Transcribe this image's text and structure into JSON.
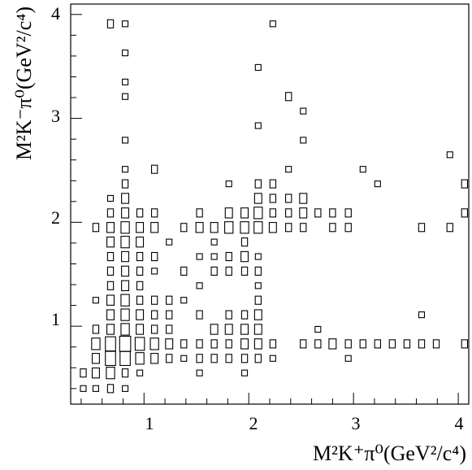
{
  "chart_data": {
    "type": "box",
    "title": "",
    "xlabel": "M²K⁺π⁰(GeV²/c⁴)",
    "ylabel": "M²K⁻π⁰(GeV²/c⁴)",
    "xlim": [
      0.3,
      4.1
    ],
    "ylim": [
      0.25,
      4.1
    ],
    "xticks": [
      "1",
      "2",
      "3",
      "4"
    ],
    "yticks": [
      "1",
      "2",
      "3",
      "4"
    ],
    "grid": false,
    "legend": "none",
    "cell_width": 0.1,
    "cell_height": 0.14,
    "cells": [
      {
        "x": 0.42,
        "y": 0.4,
        "v": 1
      },
      {
        "x": 0.54,
        "y": 0.4,
        "v": 1
      },
      {
        "x": 0.68,
        "y": 0.4,
        "v": 2
      },
      {
        "x": 0.82,
        "y": 0.4,
        "v": 1
      },
      {
        "x": 0.42,
        "y": 0.55,
        "v": 2
      },
      {
        "x": 0.54,
        "y": 0.55,
        "v": 3
      },
      {
        "x": 0.68,
        "y": 0.55,
        "v": 4
      },
      {
        "x": 0.82,
        "y": 0.55,
        "v": 2
      },
      {
        "x": 0.96,
        "y": 0.55,
        "v": 1
      },
      {
        "x": 1.53,
        "y": 0.55,
        "v": 1
      },
      {
        "x": 1.96,
        "y": 0.55,
        "v": 1
      },
      {
        "x": 0.54,
        "y": 0.69,
        "v": 3
      },
      {
        "x": 0.68,
        "y": 0.69,
        "v": 6
      },
      {
        "x": 0.82,
        "y": 0.69,
        "v": 6
      },
      {
        "x": 0.96,
        "y": 0.69,
        "v": 4
      },
      {
        "x": 1.1,
        "y": 0.69,
        "v": 3
      },
      {
        "x": 1.24,
        "y": 0.69,
        "v": 2
      },
      {
        "x": 1.38,
        "y": 0.69,
        "v": 1
      },
      {
        "x": 1.53,
        "y": 0.69,
        "v": 2
      },
      {
        "x": 1.67,
        "y": 0.69,
        "v": 2
      },
      {
        "x": 1.81,
        "y": 0.69,
        "v": 2
      },
      {
        "x": 1.96,
        "y": 0.69,
        "v": 2
      },
      {
        "x": 2.09,
        "y": 0.69,
        "v": 2
      },
      {
        "x": 2.23,
        "y": 0.69,
        "v": 1
      },
      {
        "x": 2.95,
        "y": 0.69,
        "v": 1
      },
      {
        "x": 0.54,
        "y": 0.83,
        "v": 4
      },
      {
        "x": 0.68,
        "y": 0.83,
        "v": 6
      },
      {
        "x": 0.82,
        "y": 0.83,
        "v": 7
      },
      {
        "x": 0.96,
        "y": 0.83,
        "v": 5
      },
      {
        "x": 1.1,
        "y": 0.83,
        "v": 4
      },
      {
        "x": 1.24,
        "y": 0.83,
        "v": 3
      },
      {
        "x": 1.38,
        "y": 0.83,
        "v": 2
      },
      {
        "x": 1.53,
        "y": 0.83,
        "v": 2
      },
      {
        "x": 1.67,
        "y": 0.83,
        "v": 2
      },
      {
        "x": 1.81,
        "y": 0.83,
        "v": 2
      },
      {
        "x": 1.96,
        "y": 0.83,
        "v": 3
      },
      {
        "x": 2.09,
        "y": 0.83,
        "v": 3
      },
      {
        "x": 2.23,
        "y": 0.83,
        "v": 2
      },
      {
        "x": 2.52,
        "y": 0.83,
        "v": 2
      },
      {
        "x": 2.66,
        "y": 0.83,
        "v": 2
      },
      {
        "x": 2.8,
        "y": 0.83,
        "v": 3
      },
      {
        "x": 2.95,
        "y": 0.83,
        "v": 2
      },
      {
        "x": 3.09,
        "y": 0.83,
        "v": 2
      },
      {
        "x": 3.23,
        "y": 0.83,
        "v": 2
      },
      {
        "x": 3.37,
        "y": 0.83,
        "v": 2
      },
      {
        "x": 3.51,
        "y": 0.83,
        "v": 2
      },
      {
        "x": 3.65,
        "y": 0.83,
        "v": 2
      },
      {
        "x": 3.79,
        "y": 0.83,
        "v": 2
      },
      {
        "x": 4.06,
        "y": 0.83,
        "v": 2
      },
      {
        "x": 0.54,
        "y": 0.97,
        "v": 2
      },
      {
        "x": 0.68,
        "y": 0.97,
        "v": 3
      },
      {
        "x": 0.82,
        "y": 0.97,
        "v": 4
      },
      {
        "x": 0.96,
        "y": 0.97,
        "v": 3
      },
      {
        "x": 1.1,
        "y": 0.97,
        "v": 2
      },
      {
        "x": 1.24,
        "y": 0.97,
        "v": 2
      },
      {
        "x": 1.67,
        "y": 0.97,
        "v": 3
      },
      {
        "x": 1.81,
        "y": 0.97,
        "v": 3
      },
      {
        "x": 1.96,
        "y": 0.97,
        "v": 3
      },
      {
        "x": 2.09,
        "y": 0.97,
        "v": 3
      },
      {
        "x": 2.66,
        "y": 0.97,
        "v": 1
      },
      {
        "x": 0.68,
        "y": 1.11,
        "v": 3
      },
      {
        "x": 0.82,
        "y": 1.11,
        "v": 4
      },
      {
        "x": 0.96,
        "y": 1.11,
        "v": 3
      },
      {
        "x": 1.1,
        "y": 1.11,
        "v": 2
      },
      {
        "x": 1.24,
        "y": 1.11,
        "v": 2
      },
      {
        "x": 1.53,
        "y": 1.11,
        "v": 2
      },
      {
        "x": 1.81,
        "y": 1.11,
        "v": 2
      },
      {
        "x": 1.96,
        "y": 1.11,
        "v": 2
      },
      {
        "x": 2.09,
        "y": 1.11,
        "v": 3
      },
      {
        "x": 3.65,
        "y": 1.11,
        "v": 1
      },
      {
        "x": 0.54,
        "y": 1.25,
        "v": 1
      },
      {
        "x": 0.68,
        "y": 1.25,
        "v": 3
      },
      {
        "x": 0.82,
        "y": 1.25,
        "v": 4
      },
      {
        "x": 0.96,
        "y": 1.25,
        "v": 2
      },
      {
        "x": 1.1,
        "y": 1.25,
        "v": 2
      },
      {
        "x": 1.24,
        "y": 1.25,
        "v": 2
      },
      {
        "x": 1.38,
        "y": 1.25,
        "v": 1
      },
      {
        "x": 2.09,
        "y": 1.25,
        "v": 2
      },
      {
        "x": 0.68,
        "y": 1.39,
        "v": 2
      },
      {
        "x": 0.82,
        "y": 1.39,
        "v": 3
      },
      {
        "x": 0.96,
        "y": 1.39,
        "v": 2
      },
      {
        "x": 1.53,
        "y": 1.39,
        "v": 1
      },
      {
        "x": 2.09,
        "y": 1.39,
        "v": 1
      },
      {
        "x": 0.68,
        "y": 1.53,
        "v": 2
      },
      {
        "x": 0.82,
        "y": 1.53,
        "v": 3
      },
      {
        "x": 0.96,
        "y": 1.53,
        "v": 2
      },
      {
        "x": 1.1,
        "y": 1.53,
        "v": 1
      },
      {
        "x": 1.38,
        "y": 1.53,
        "v": 2
      },
      {
        "x": 1.67,
        "y": 1.53,
        "v": 2
      },
      {
        "x": 1.81,
        "y": 1.53,
        "v": 2
      },
      {
        "x": 1.96,
        "y": 1.53,
        "v": 2
      },
      {
        "x": 2.09,
        "y": 1.53,
        "v": 2
      },
      {
        "x": 0.68,
        "y": 1.67,
        "v": 2
      },
      {
        "x": 0.82,
        "y": 1.67,
        "v": 3
      },
      {
        "x": 0.96,
        "y": 1.67,
        "v": 2
      },
      {
        "x": 1.1,
        "y": 1.67,
        "v": 2
      },
      {
        "x": 1.53,
        "y": 1.67,
        "v": 1
      },
      {
        "x": 1.67,
        "y": 1.67,
        "v": 1
      },
      {
        "x": 1.81,
        "y": 1.67,
        "v": 2
      },
      {
        "x": 1.96,
        "y": 1.67,
        "v": 3
      },
      {
        "x": 2.09,
        "y": 1.67,
        "v": 1
      },
      {
        "x": 0.68,
        "y": 1.81,
        "v": 3
      },
      {
        "x": 0.82,
        "y": 1.81,
        "v": 4
      },
      {
        "x": 0.96,
        "y": 1.81,
        "v": 3
      },
      {
        "x": 1.24,
        "y": 1.81,
        "v": 1
      },
      {
        "x": 1.67,
        "y": 1.81,
        "v": 1
      },
      {
        "x": 1.96,
        "y": 1.81,
        "v": 2
      },
      {
        "x": 0.54,
        "y": 1.95,
        "v": 2
      },
      {
        "x": 0.68,
        "y": 1.95,
        "v": 3
      },
      {
        "x": 0.82,
        "y": 1.95,
        "v": 4
      },
      {
        "x": 0.96,
        "y": 1.95,
        "v": 3
      },
      {
        "x": 1.1,
        "y": 1.95,
        "v": 3
      },
      {
        "x": 1.38,
        "y": 1.95,
        "v": 2
      },
      {
        "x": 1.53,
        "y": 1.95,
        "v": 3
      },
      {
        "x": 1.67,
        "y": 1.95,
        "v": 3
      },
      {
        "x": 1.81,
        "y": 1.95,
        "v": 4
      },
      {
        "x": 1.96,
        "y": 1.95,
        "v": 4
      },
      {
        "x": 2.09,
        "y": 1.95,
        "v": 4
      },
      {
        "x": 2.23,
        "y": 1.95,
        "v": 3
      },
      {
        "x": 2.38,
        "y": 1.95,
        "v": 2
      },
      {
        "x": 2.52,
        "y": 1.95,
        "v": 2
      },
      {
        "x": 2.8,
        "y": 1.95,
        "v": 2
      },
      {
        "x": 2.95,
        "y": 1.95,
        "v": 2
      },
      {
        "x": 3.65,
        "y": 1.95,
        "v": 2
      },
      {
        "x": 3.92,
        "y": 1.95,
        "v": 2
      },
      {
        "x": 0.68,
        "y": 2.09,
        "v": 2
      },
      {
        "x": 0.82,
        "y": 2.09,
        "v": 3
      },
      {
        "x": 0.96,
        "y": 2.09,
        "v": 2
      },
      {
        "x": 1.1,
        "y": 2.09,
        "v": 2
      },
      {
        "x": 1.53,
        "y": 2.09,
        "v": 2
      },
      {
        "x": 1.81,
        "y": 2.09,
        "v": 3
      },
      {
        "x": 1.96,
        "y": 2.09,
        "v": 3
      },
      {
        "x": 2.09,
        "y": 2.09,
        "v": 4
      },
      {
        "x": 2.23,
        "y": 2.09,
        "v": 2
      },
      {
        "x": 2.38,
        "y": 2.09,
        "v": 2
      },
      {
        "x": 2.52,
        "y": 2.09,
        "v": 3
      },
      {
        "x": 2.66,
        "y": 2.09,
        "v": 2
      },
      {
        "x": 2.8,
        "y": 2.09,
        "v": 2
      },
      {
        "x": 2.95,
        "y": 2.09,
        "v": 2
      },
      {
        "x": 4.06,
        "y": 2.09,
        "v": 2
      },
      {
        "x": 0.68,
        "y": 2.23,
        "v": 1
      },
      {
        "x": 0.82,
        "y": 2.23,
        "v": 3
      },
      {
        "x": 2.09,
        "y": 2.23,
        "v": 3
      },
      {
        "x": 2.23,
        "y": 2.23,
        "v": 2
      },
      {
        "x": 2.38,
        "y": 2.23,
        "v": 2
      },
      {
        "x": 2.52,
        "y": 2.23,
        "v": 3
      },
      {
        "x": 0.82,
        "y": 2.37,
        "v": 2
      },
      {
        "x": 1.81,
        "y": 2.37,
        "v": 1
      },
      {
        "x": 2.09,
        "y": 2.37,
        "v": 2
      },
      {
        "x": 2.23,
        "y": 2.37,
        "v": 2
      },
      {
        "x": 3.23,
        "y": 2.37,
        "v": 1
      },
      {
        "x": 4.06,
        "y": 2.37,
        "v": 2
      },
      {
        "x": 0.82,
        "y": 2.51,
        "v": 1
      },
      {
        "x": 1.1,
        "y": 2.51,
        "v": 2
      },
      {
        "x": 2.38,
        "y": 2.51,
        "v": 1
      },
      {
        "x": 3.09,
        "y": 2.51,
        "v": 1
      },
      {
        "x": 3.92,
        "y": 2.65,
        "v": 1
      },
      {
        "x": 0.82,
        "y": 2.79,
        "v": 1
      },
      {
        "x": 2.52,
        "y": 2.79,
        "v": 1
      },
      {
        "x": 2.09,
        "y": 2.93,
        "v": 1
      },
      {
        "x": 2.52,
        "y": 3.07,
        "v": 1
      },
      {
        "x": 2.38,
        "y": 3.21,
        "v": 2
      },
      {
        "x": 0.82,
        "y": 3.21,
        "v": 1
      },
      {
        "x": 0.82,
        "y": 3.35,
        "v": 1
      },
      {
        "x": 2.09,
        "y": 3.49,
        "v": 1
      },
      {
        "x": 0.82,
        "y": 3.63,
        "v": 1
      },
      {
        "x": 0.68,
        "y": 3.91,
        "v": 2
      },
      {
        "x": 0.82,
        "y": 3.91,
        "v": 1
      },
      {
        "x": 2.23,
        "y": 3.91,
        "v": 1
      }
    ]
  }
}
